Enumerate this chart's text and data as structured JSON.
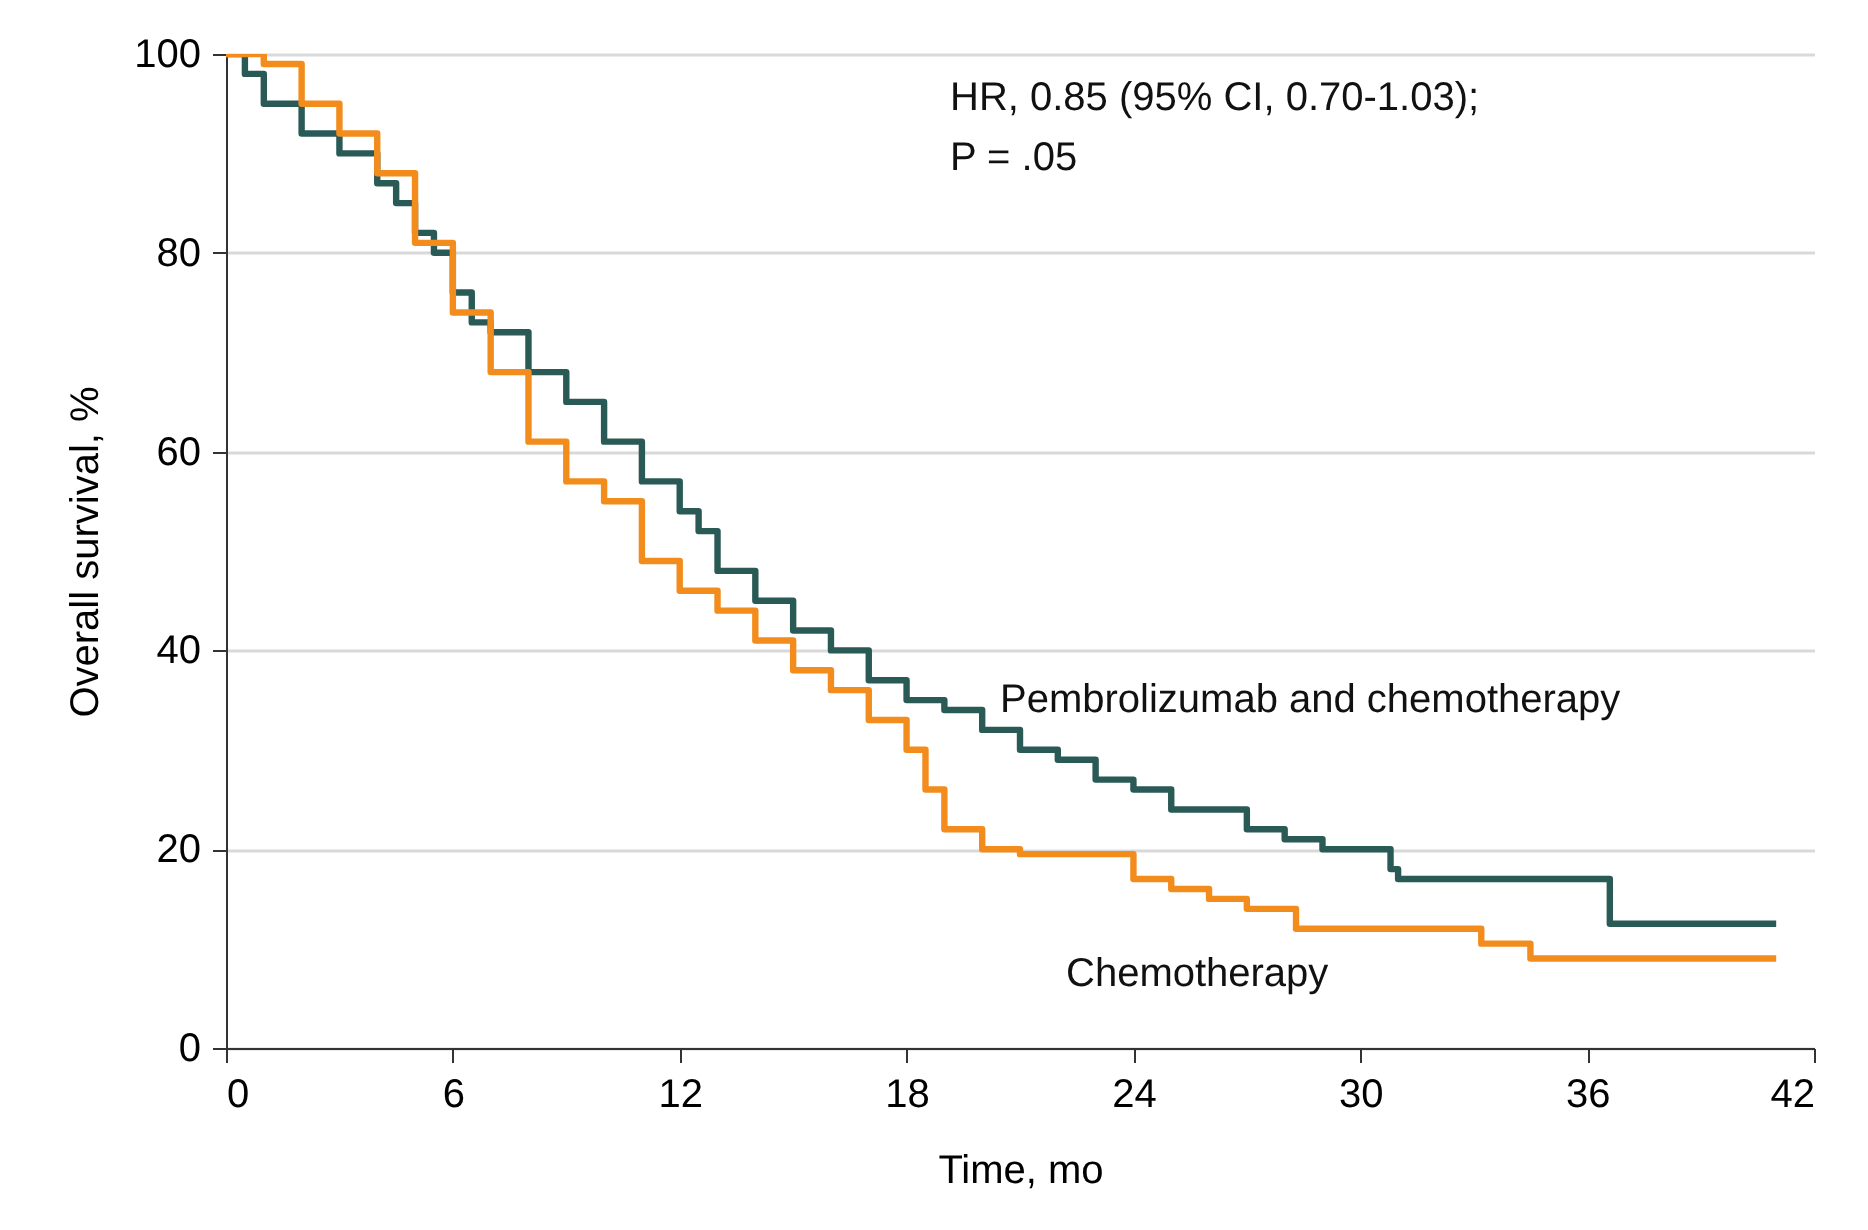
{
  "chart_data": {
    "type": "step",
    "xlabel": "Time, mo",
    "ylabel": "Overall survival, %",
    "xlim": [
      0,
      42
    ],
    "xticks": [
      0,
      6,
      12,
      18,
      24,
      30,
      36,
      42
    ],
    "ylim": [
      0,
      100
    ],
    "yticks": [
      0,
      20,
      40,
      60,
      80,
      100
    ],
    "grid": "y",
    "legend": false,
    "line_style": "solid",
    "marker": "none",
    "annotations": [
      "HR, 0.85 (95% CI, 0.70-1.03);",
      "P = .05"
    ],
    "series": [
      {
        "name": "Pembrolizumab and chemotherapy",
        "color": "#2a5a55",
        "x": [
          0,
          0.5,
          1,
          2,
          3,
          4,
          4.5,
          5,
          5.5,
          6,
          6.5,
          7,
          8,
          9,
          10,
          11,
          12,
          12.5,
          13,
          14,
          15,
          16,
          17,
          18,
          19,
          20,
          21,
          22,
          23,
          24,
          25,
          26,
          27,
          28,
          29,
          30,
          30.8,
          31,
          36.6,
          41
        ],
        "values": [
          100,
          98,
          95,
          92,
          90,
          87,
          85,
          82,
          80,
          76,
          73,
          72,
          68,
          65,
          61,
          57,
          54,
          52,
          48,
          45,
          42,
          40,
          37,
          35,
          34,
          32,
          30,
          29,
          27,
          26,
          24,
          24,
          22,
          21,
          20,
          20,
          18,
          17,
          12.5,
          12.5
        ]
      },
      {
        "name": "Chemotherapy",
        "color": "#f28c1c",
        "x": [
          0,
          1,
          2,
          3,
          4,
          5,
          6,
          7,
          8,
          9,
          10,
          11,
          12,
          13,
          14,
          15,
          16,
          17,
          18,
          18.5,
          19,
          20,
          21,
          23,
          24,
          25,
          26,
          27,
          28,
          28.3,
          33,
          33.2,
          34.5,
          41
        ],
        "values": [
          100,
          99,
          95,
          92,
          88,
          81,
          74,
          68,
          61,
          57,
          55,
          49,
          46,
          44,
          41,
          38,
          36,
          33,
          30,
          26,
          22,
          20,
          19.5,
          19.5,
          17,
          16,
          15,
          14,
          14,
          12,
          12,
          10.5,
          9,
          9
        ]
      }
    ]
  }
}
